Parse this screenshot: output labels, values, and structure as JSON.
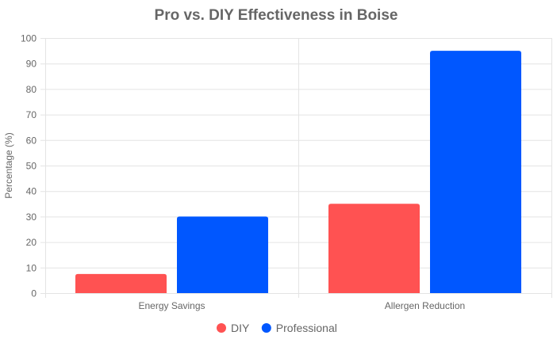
{
  "chart_data": {
    "type": "bar",
    "title": "Pro vs. DIY Effectiveness in Boise",
    "xlabel": "",
    "ylabel": "Percentage (%)",
    "ylim": [
      0,
      100
    ],
    "yticks": [
      "0",
      "10",
      "20",
      "30",
      "40",
      "50",
      "60",
      "70",
      "80",
      "90",
      "100"
    ],
    "categories": [
      "Energy Savings",
      "Allergen Reduction"
    ],
    "series": [
      {
        "name": "DIY",
        "values": [
          7.5,
          35
        ],
        "color": "#ff5252"
      },
      {
        "name": "Professional",
        "values": [
          30,
          95
        ],
        "color": "#0057ff"
      }
    ],
    "grid": true,
    "legend": "bottom"
  }
}
